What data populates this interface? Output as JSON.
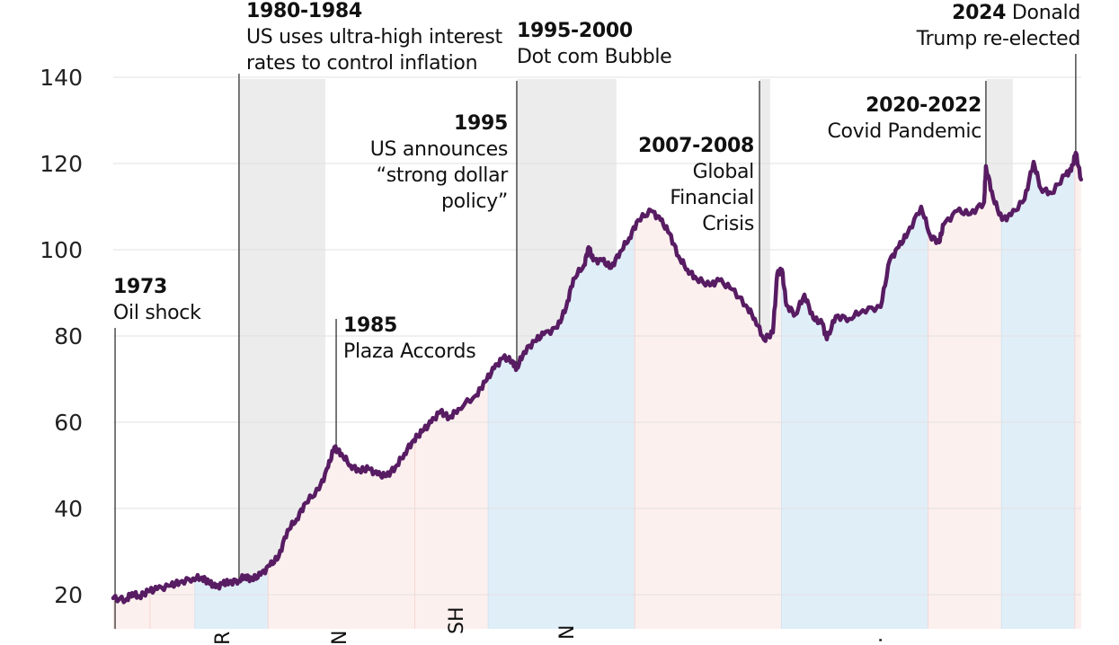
{
  "chart_data": {
    "type": "line",
    "title": "",
    "xlabel": "",
    "ylabel": "",
    "xlim": [
      1972.6,
      2025.4
    ],
    "ylim": [
      12,
      150
    ],
    "grid": true,
    "yticks": [
      "20",
      "40",
      "60",
      "80",
      "100",
      "120",
      "140"
    ],
    "colors": {
      "line": "#581c63",
      "republican": "#fcf0ee",
      "democrat": "#e0eef8",
      "event": "#ececec",
      "grid": "#e2e2e2"
    },
    "series": [
      {
        "x": [
          1972.6,
          1973.29,
          1973.63,
          1974.02,
          1974.51,
          1974.99,
          1975.74,
          1976.23,
          1976.96,
          1977.45,
          1977.8,
          1978.19,
          1978.58,
          1978.92,
          1979.46,
          1979.81,
          1980.15,
          1980.64,
          1981.13,
          1981.62,
          1982.11,
          1982.6,
          1983.09,
          1983.82,
          1984.32,
          1984.66,
          1985.05,
          1985.54,
          1986.03,
          1986.52,
          1987.01,
          1987.5,
          1987.99,
          1988.48,
          1988.97,
          1989.46,
          1989.95,
          1990.44,
          1990.93,
          1991.42,
          1992.4,
          1992.89,
          1993.38,
          1993.87,
          1994.36,
          1994.61,
          1995.0,
          1995.59,
          1996.08,
          1996.82,
          1997.31,
          1997.7,
          1998.29,
          1998.53,
          1998.78,
          1999.27,
          1999.76,
          2000.25,
          2000.74,
          2001.23,
          2001.96,
          2002.45,
          2002.94,
          2003.43,
          2003.92,
          2004.41,
          2005.15,
          2005.64,
          2006.37,
          2007.11,
          2007.6,
          2008.09,
          2008.58,
          2008.82,
          2009.07,
          2009.32,
          2009.81,
          2010.3,
          2010.79,
          2011.28,
          2011.52,
          2012.01,
          2012.75,
          2013.48,
          2014.46,
          2014.95,
          2015.44,
          2015.93,
          2016.67,
          2017.16,
          2017.65,
          2017.89,
          2018.63,
          2019.36,
          2020.1,
          2020.2,
          2020.59,
          2021.08,
          2021.57,
          2022.31,
          2022.8,
          2023.19,
          2023.78,
          2024.51,
          2024.85,
          2025.1,
          2025.39
        ],
        "values": [
          19.2,
          18.8,
          20.4,
          19.6,
          20.8,
          21.3,
          22.1,
          22.9,
          23.8,
          24.0,
          22.9,
          21.7,
          22.5,
          22.9,
          23.3,
          24.4,
          23.5,
          24.6,
          26.7,
          28.8,
          35.0,
          37.5,
          41.3,
          44.4,
          49.6,
          54.2,
          52.7,
          50.0,
          48.8,
          49.2,
          47.9,
          47.5,
          49.6,
          52.7,
          55.8,
          57.9,
          60.0,
          62.5,
          61.0,
          63.1,
          66.3,
          69.4,
          72.5,
          75.0,
          74.2,
          72.5,
          76.3,
          78.8,
          80.4,
          81.9,
          86.7,
          93.3,
          96.5,
          100.6,
          97.5,
          97.5,
          95.8,
          99.6,
          102.7,
          106.9,
          109.0,
          106.9,
          103.8,
          98.5,
          95.4,
          93.3,
          91.7,
          92.9,
          90.8,
          87.1,
          84.0,
          79.2,
          80.8,
          94.4,
          95.4,
          87.1,
          85.0,
          89.6,
          84.0,
          82.9,
          79.2,
          84.6,
          84.0,
          86.0,
          86.7,
          97.5,
          100.6,
          103.8,
          110.0,
          103.3,
          101.7,
          105.8,
          109.0,
          108.3,
          111.0,
          119.4,
          112.1,
          106.9,
          108.0,
          111.7,
          120.4,
          114.2,
          113.1,
          117.3,
          118.3,
          122.5,
          116.3
        ]
      }
    ],
    "presidencies": [
      {
        "start": 1972.6,
        "end": 1974.6,
        "party": "republican",
        "label": ""
      },
      {
        "start": 1974.6,
        "end": 1977.05,
        "party": "republican",
        "label": ""
      },
      {
        "start": 1977.05,
        "end": 1981.05,
        "party": "democrat",
        "label": "R"
      },
      {
        "start": 1981.05,
        "end": 1989.05,
        "party": "republican",
        "label": "N"
      },
      {
        "start": 1989.05,
        "end": 1993.05,
        "party": "republican",
        "label": "SH"
      },
      {
        "start": 1993.05,
        "end": 2001.05,
        "party": "democrat",
        "label": "N"
      },
      {
        "start": 2001.05,
        "end": 2009.05,
        "party": "republican",
        "label": ""
      },
      {
        "start": 2009.05,
        "end": 2017.05,
        "party": "democrat",
        "label": "."
      },
      {
        "start": 2017.05,
        "end": 2021.05,
        "party": "republican",
        "label": ""
      },
      {
        "start": 2021.05,
        "end": 2025.05,
        "party": "democrat",
        "label": ""
      },
      {
        "start": 2025.05,
        "end": 2025.4,
        "party": "republican",
        "label": ""
      }
    ],
    "events": [
      {
        "year": "1973",
        "text": [
          "Oil shock"
        ],
        "marker": 1972.7,
        "band": null
      },
      {
        "year": "1980-1984",
        "text": [
          "US uses ultra-high interest",
          "rates to control inflation"
        ],
        "marker": 1979.46,
        "band": [
          1979.46,
          1984.17
        ]
      },
      {
        "year": "1985",
        "text": [
          "Plaza Accords"
        ],
        "marker": 1984.76,
        "band": null
      },
      {
        "year": "1995",
        "text": [
          "US announces",
          "“strong dollar",
          "policy”"
        ],
        "marker": 1994.61,
        "band": null
      },
      {
        "year": "1995-2000",
        "text": [
          "Dot com Bubble"
        ],
        "marker": 1994.61,
        "band": [
          1994.61,
          2000.05
        ]
      },
      {
        "year": "2007-2008",
        "text": [
          "Global",
          "Financial",
          "Crisis"
        ],
        "marker": 2007.85,
        "band": [
          2007.85,
          2008.43
        ]
      },
      {
        "year": "2020-2022",
        "text": [
          "Covid Pandemic"
        ],
        "marker": 2020.2,
        "band": [
          2020.2,
          2021.67
        ]
      },
      {
        "year": "2024",
        "text": [
          "Donald",
          "Trump re-elected"
        ],
        "marker": 2025.1,
        "band": null
      }
    ]
  }
}
